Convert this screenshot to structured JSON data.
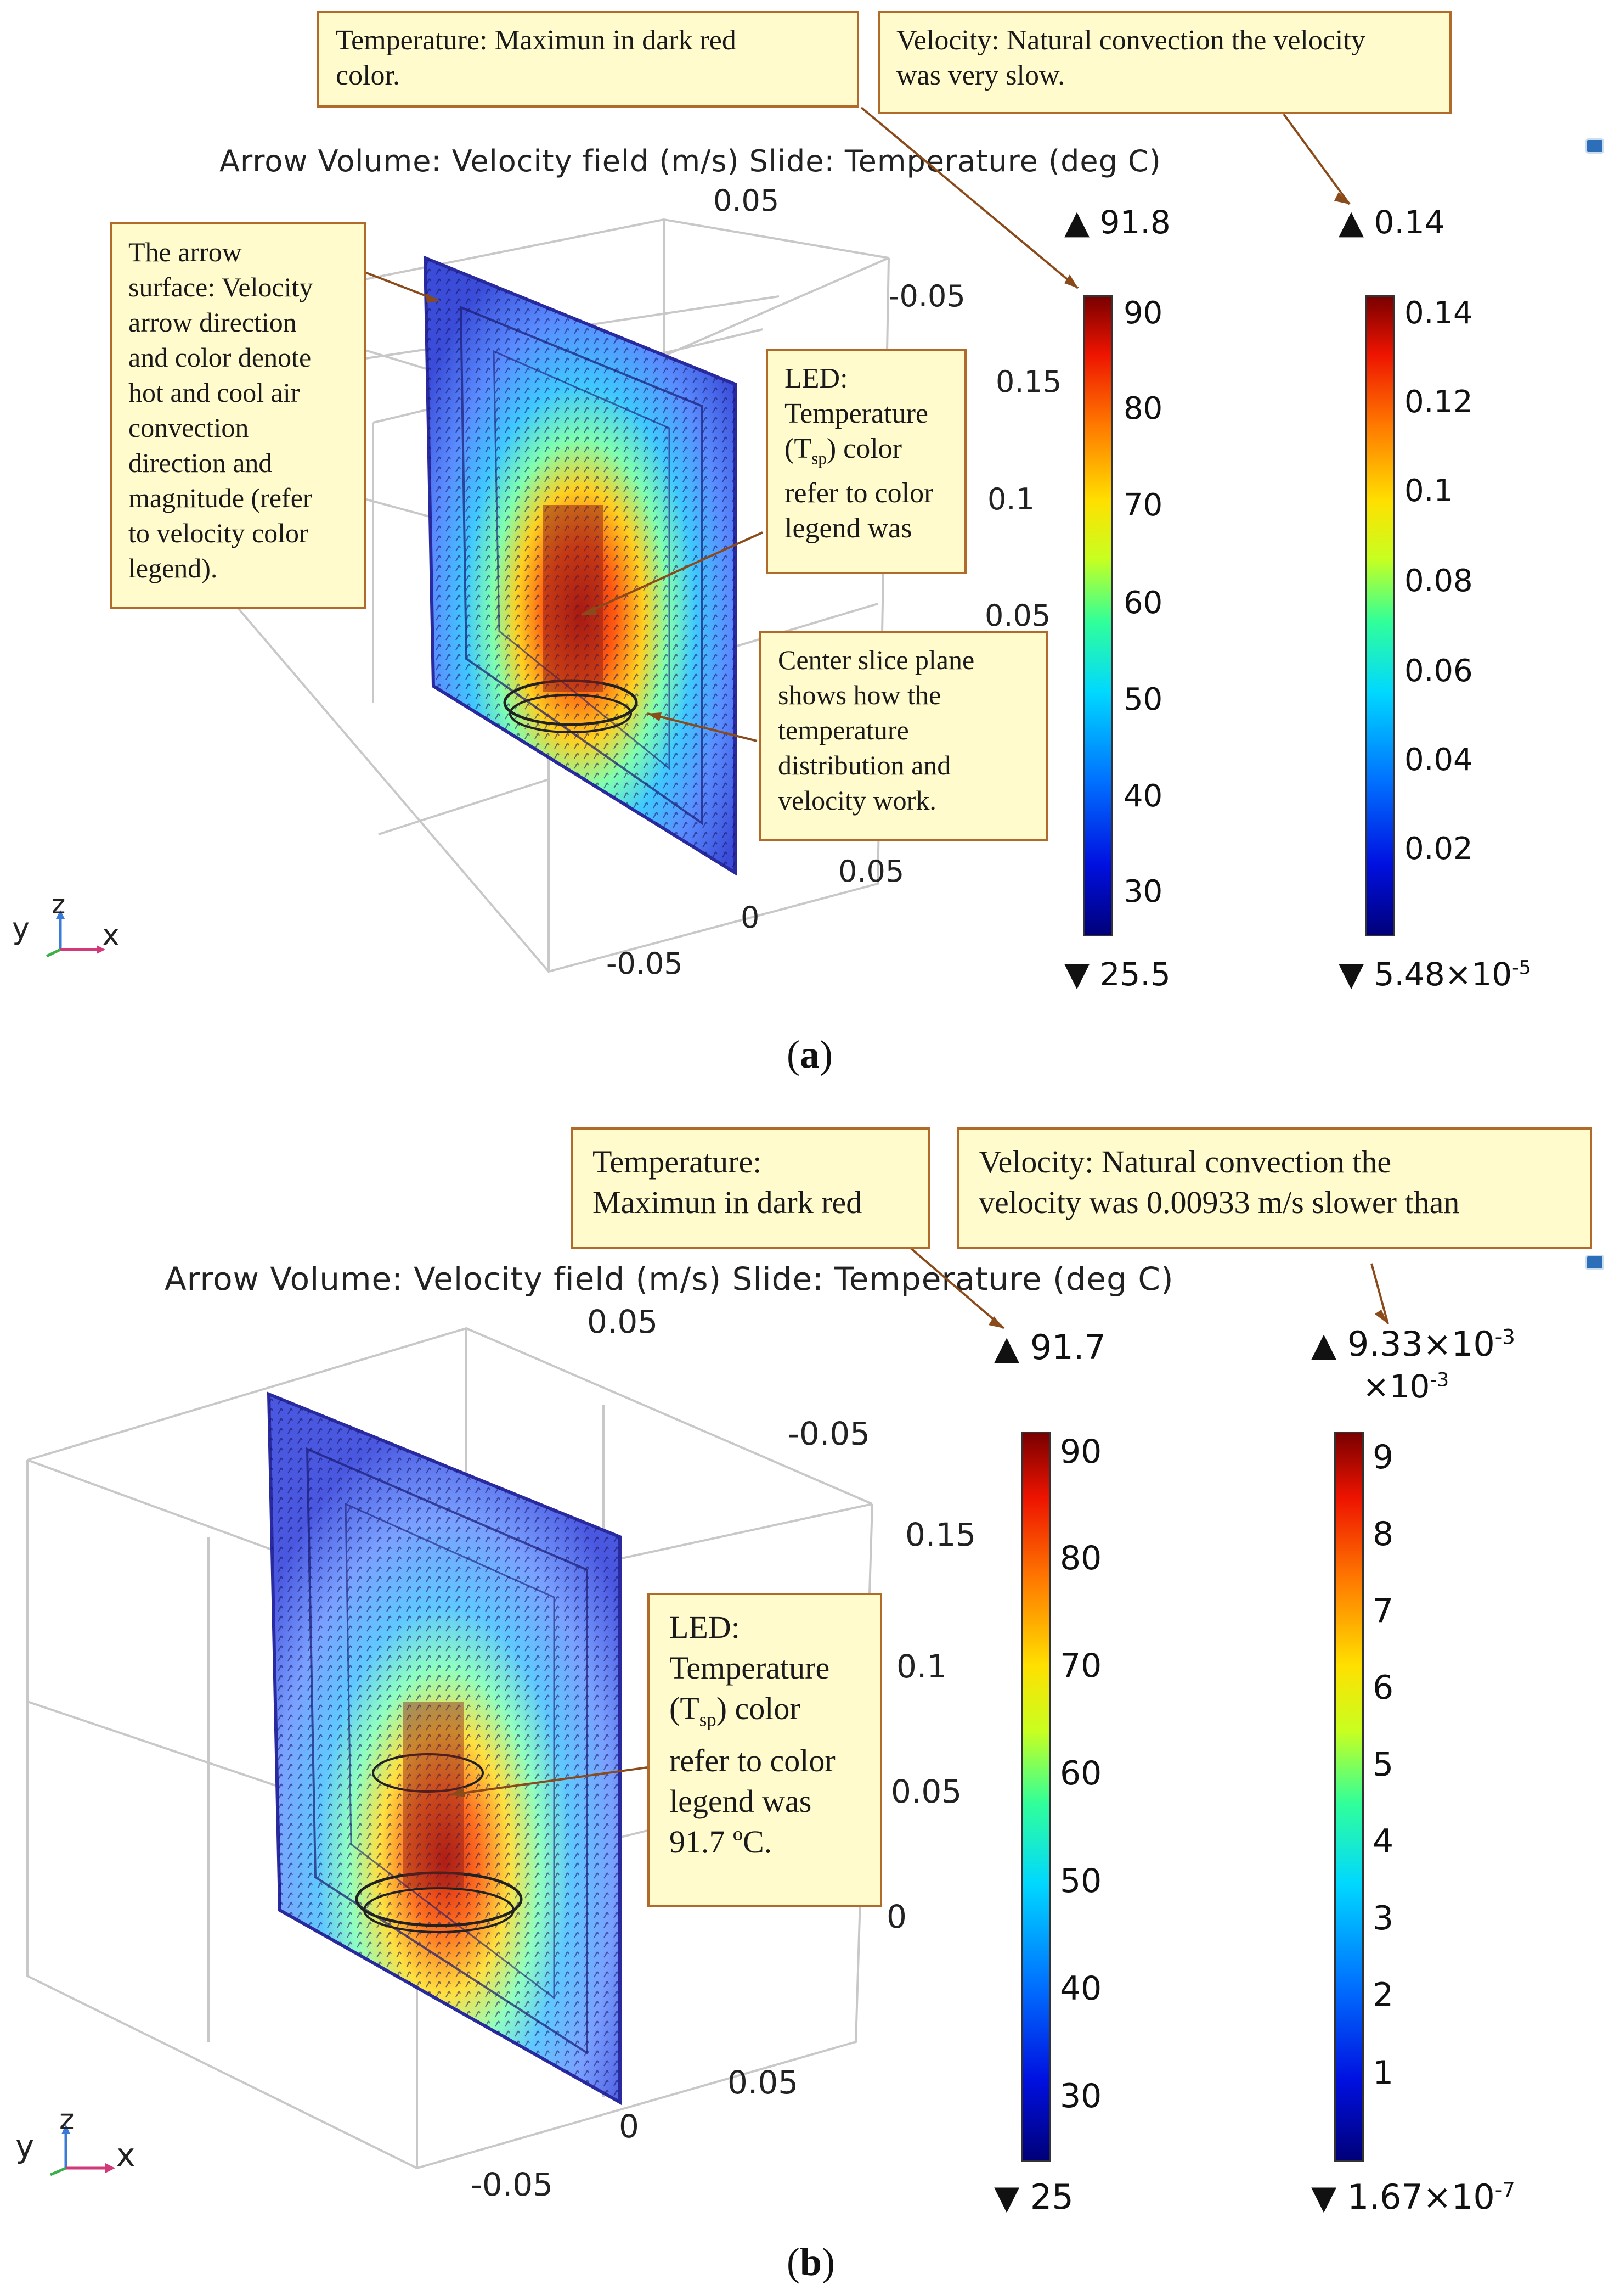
{
  "panel_a": {
    "plot_title": "Arrow Volume: Velocity field (m/s) Slide: Temperature (deg C)",
    "callouts": {
      "temperature": "Temperature: Maximun in dark red\ncolor.",
      "velocity": "Velocity: Natural convection the velocity\nwas very slow.",
      "arrow_surface": "The arrow\nsurface: Velocity\narrow direction\nand color denote\nhot and cool air\nconvection\ndirection and\nmagnitude (refer\nto velocity color\nlegend).",
      "led_line1": "LED:",
      "led_line2": "Temperature",
      "led_tsp_open": "(T",
      "led_tsp_sub": "sp",
      "led_tsp_close": ") color",
      "led_line4": "refer to color",
      "led_line5": "legend was",
      "center_slice": "Center slice plane\nshows  how the\ntemperature\ndistribution and\nvelocity work."
    },
    "axis_ticks": [
      "0.05",
      "-0.05",
      "0.15",
      "0.1",
      "0.05",
      "0.05",
      "0",
      "-0.05"
    ],
    "temperature_legend": {
      "max": "91.8",
      "min": "25.5",
      "ticks": [
        "90",
        "80",
        "70",
        "60",
        "50",
        "40",
        "30"
      ]
    },
    "velocity_legend": {
      "max": "0.14",
      "min_base": "5.48×10",
      "min_exp": "-5",
      "ticks": [
        "0.14",
        "0.12",
        "0.1",
        "0.08",
        "0.06",
        "0.04",
        "0.02"
      ]
    },
    "caption_open": "(",
    "caption_letter": "a",
    "caption_close": ")"
  },
  "panel_b": {
    "plot_title": "Arrow Volume: Velocity field (m/s) Slide: Temperature (deg C)",
    "callouts": {
      "temperature": "Temperature:\nMaximun in dark red",
      "velocity": "Velocity: Natural convection the\nvelocity was  0.00933 m/s slower than",
      "led_line1": "LED:",
      "led_line2": "Temperature",
      "led_tsp_open": "(T",
      "led_tsp_sub": "sp",
      "led_tsp_close": ") color",
      "led_line4": "refer to color",
      "led_line5": "legend was",
      "led_line6": "91.7 ºC."
    },
    "axis_ticks": [
      "0.05",
      "-0.05",
      "0.15",
      "0.1",
      "0.05",
      "0",
      "0.05",
      "0",
      "-0.05"
    ],
    "temperature_legend": {
      "max": "91.7",
      "min": "25",
      "ticks": [
        "90",
        "80",
        "70",
        "60",
        "50",
        "40",
        "30"
      ]
    },
    "velocity_legend": {
      "max_base": "9.33×10",
      "max_exp": "-3",
      "multiplier_base": "×10",
      "multiplier_exp": "-3",
      "min_base": "1.67×10",
      "min_exp": "-7",
      "ticks": [
        "9",
        "8",
        "7",
        "6",
        "5",
        "4",
        "3",
        "2",
        "1"
      ]
    },
    "caption_open": "(",
    "caption_letter": "b",
    "caption_close": ")"
  },
  "axis_triad_labels": {
    "y": "y",
    "z": "z",
    "x": "x"
  },
  "colors": {
    "callout_fill": "#fffbcc",
    "callout_border": "#b06a2a",
    "leader_line": "#8a4a1a",
    "arrow_dark": "#10105a",
    "box_edges": "#c8c8c8"
  }
}
